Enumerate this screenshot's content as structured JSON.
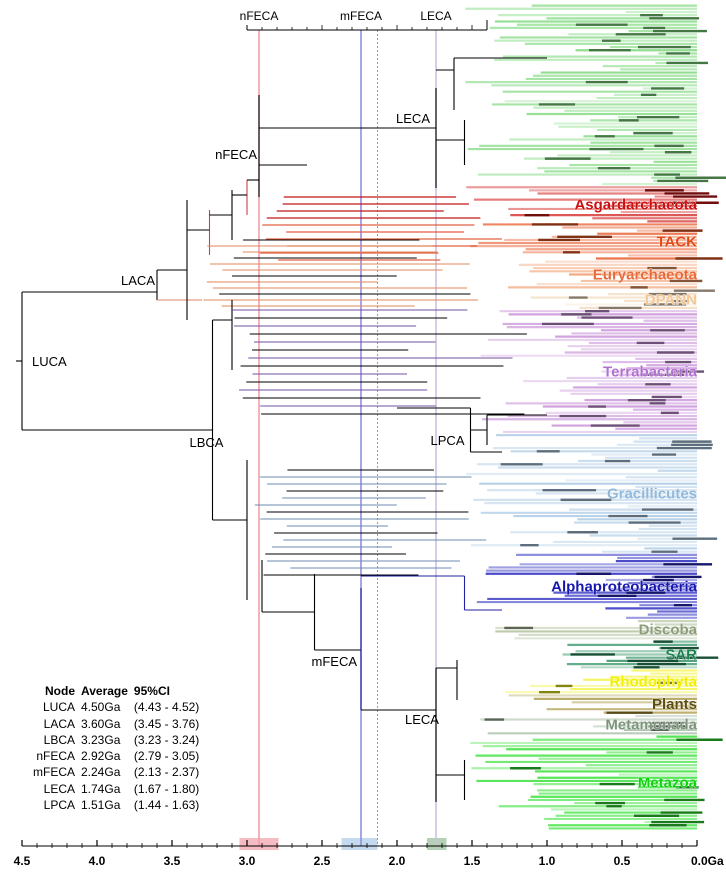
{
  "chart_data": {
    "type": "phylogenetic-timetree",
    "title": "",
    "xlabel": "Ga",
    "x_axis": {
      "range": [
        4.5,
        0.0
      ],
      "direction": "reversed",
      "unit": "Ga",
      "ticks": [
        {
          "value": 4.5,
          "label": "4.5"
        },
        {
          "value": 4.0,
          "label": "4.0"
        },
        {
          "value": 3.5,
          "label": "3.5"
        },
        {
          "value": 3.0,
          "label": "3.0"
        },
        {
          "value": 2.5,
          "label": "2.5"
        },
        {
          "value": 2.0,
          "label": "2.0"
        },
        {
          "value": 1.5,
          "label": "1.5"
        },
        {
          "value": 1.0,
          "label": "1.0"
        },
        {
          "value": 0.5,
          "label": "0.5"
        },
        {
          "value": 0.0,
          "label": "0.0Ga"
        }
      ],
      "minor_step": 0.1
    },
    "top_scale": {
      "range": [
        3.0,
        1.4
      ],
      "labels": [
        {
          "text": "nFECA",
          "value": 2.92
        },
        {
          "text": "mFECA",
          "value": 2.24
        },
        {
          "text": "LECA",
          "value": 1.74
        }
      ]
    },
    "reference_lines": [
      {
        "name": "nFECA",
        "value": 2.92,
        "color": "#f0a0a8",
        "style": "solid"
      },
      {
        "name": "mFECA",
        "value": 2.24,
        "color": "#9090e0",
        "style": "solid"
      },
      {
        "name": "mFECA-ci",
        "value": 2.13,
        "color": "#9090e0",
        "style": "dotted"
      },
      {
        "name": "LECA",
        "value": 1.74,
        "color": "#d0c0e0",
        "style": "solid"
      }
    ],
    "axis_ci_bands": [
      {
        "name": "nFECA",
        "from": 3.05,
        "to": 2.79,
        "color": "#f4b0b8"
      },
      {
        "name": "mFECA",
        "from": 2.37,
        "to": 2.13,
        "color": "#b8d4ec"
      },
      {
        "name": "LECA",
        "from": 1.8,
        "to": 1.67,
        "color": "#a8c8a8"
      }
    ],
    "nodes": [
      {
        "name": "LUCA",
        "average": 4.5,
        "ci": [
          4.43,
          4.52
        ]
      },
      {
        "name": "LACA",
        "average": 3.6,
        "ci": [
          3.45,
          3.76
        ]
      },
      {
        "name": "LBCA",
        "average": 3.23,
        "ci": [
          3.23,
          3.24
        ]
      },
      {
        "name": "nFECA",
        "average": 2.92,
        "ci": [
          2.79,
          3.05
        ]
      },
      {
        "name": "mFECA",
        "average": 2.24,
        "ci": [
          2.13,
          2.37
        ]
      },
      {
        "name": "LECA",
        "average": 1.74,
        "ci": [
          1.67,
          1.8
        ]
      },
      {
        "name": "LPCA",
        "average": 1.51,
        "ci": [
          1.44,
          1.63
        ]
      }
    ],
    "tree_node_labels": [
      {
        "text": "LUCA",
        "value": 4.5
      },
      {
        "text": "LACA",
        "value": 3.6
      },
      {
        "text": "LBCA",
        "value": 3.23
      },
      {
        "text": "nFECA",
        "value": 2.92
      },
      {
        "text": "LECA",
        "value": 1.74,
        "which": "upper"
      },
      {
        "text": "LPCA",
        "value": 1.51
      },
      {
        "text": "mFECA",
        "value": 2.24
      },
      {
        "text": "LECA",
        "value": 1.74,
        "which": "lower"
      }
    ],
    "clades": [
      {
        "name": "Eukaryotes (upper LECA clade)",
        "label": "",
        "color": "#7cd87c",
        "band": [
          0.0,
          0.22
        ]
      },
      {
        "name": "Asgardarchaeota",
        "label": "Asgardarchaeota",
        "color": "#d01818",
        "text_color": "#cc1010",
        "band": [
          0.22,
          0.265
        ]
      },
      {
        "name": "TACK",
        "label": "TACK",
        "color": "#e85a2a",
        "text_color": "#e24a14",
        "band": [
          0.265,
          0.31
        ]
      },
      {
        "name": "Euryarchaeota",
        "label": "Euryarchaeota",
        "color": "#f09a6a",
        "text_color": "#e86a3a",
        "band": [
          0.31,
          0.345
        ]
      },
      {
        "name": "DPANN",
        "label": "DPANN",
        "color": "#f4dcc0",
        "text_color": "#f2c898",
        "band": [
          0.345,
          0.37
        ]
      },
      {
        "name": "Terrabacteria",
        "label": "Terrabacteria",
        "color": "#c890d8",
        "text_color": "#b070d0",
        "band": [
          0.37,
          0.52
        ]
      },
      {
        "name": "Gracilicutes",
        "label": "Gracillicutes",
        "color": "#a8c8e4",
        "text_color": "#90b8d8",
        "band": [
          0.52,
          0.665
        ]
      },
      {
        "name": "Alphaproteobacteria",
        "label": "Alphaproteobacteria",
        "color": "#2828c0",
        "text_color": "#1818b0",
        "band": [
          0.665,
          0.745
        ]
      },
      {
        "name": "Discoba",
        "label": "Discoba",
        "color": "#a8b890",
        "text_color": "#8c9c78",
        "band": [
          0.745,
          0.77
        ]
      },
      {
        "name": "SAR",
        "label": "SAR",
        "color": "#2c9060",
        "text_color": "#1c8050",
        "band": [
          0.77,
          0.805
        ]
      },
      {
        "name": "Rhodophyta",
        "label": "Rhodophyta",
        "color": "#f0f020",
        "text_color": "#f0f000",
        "band": [
          0.805,
          0.835
        ]
      },
      {
        "name": "Plants",
        "label": "Plants",
        "color": "#a08c30",
        "text_color": "#5c4c10",
        "band": [
          0.835,
          0.86
        ]
      },
      {
        "name": "Metamonada",
        "label": "Metamonada",
        "color": "#a0b8a0",
        "text_color": "#7c947c",
        "band": [
          0.86,
          0.885
        ]
      },
      {
        "name": "Metazoa",
        "label": "Metazoa",
        "color": "#30e030",
        "text_color": "#10d010",
        "band": [
          0.885,
          1.0
        ]
      }
    ]
  },
  "legend": {
    "headers": {
      "node": "Node",
      "average": "Average",
      "ci": "95%CI"
    },
    "rows": [
      {
        "node": "LUCA",
        "average": "4.50Ga",
        "ci": "(4.43 - 4.52)"
      },
      {
        "node": "LACA",
        "average": "3.60Ga",
        "ci": "(3.45 - 3.76)"
      },
      {
        "node": "LBCA",
        "average": "3.23Ga",
        "ci": "(3.23 - 3.24)"
      },
      {
        "node": "nFECA",
        "average": "2.92Ga",
        "ci": "(2.79 - 3.05)"
      },
      {
        "node": "mFECA",
        "average": "2.24Ga",
        "ci": "(2.13 - 2.37)"
      },
      {
        "node": "LECA",
        "average": "1.74Ga",
        "ci": "(1.67 - 1.80)"
      },
      {
        "node": "LPCA",
        "average": "1.51Ga",
        "ci": "(1.44 - 1.63)"
      }
    ]
  }
}
